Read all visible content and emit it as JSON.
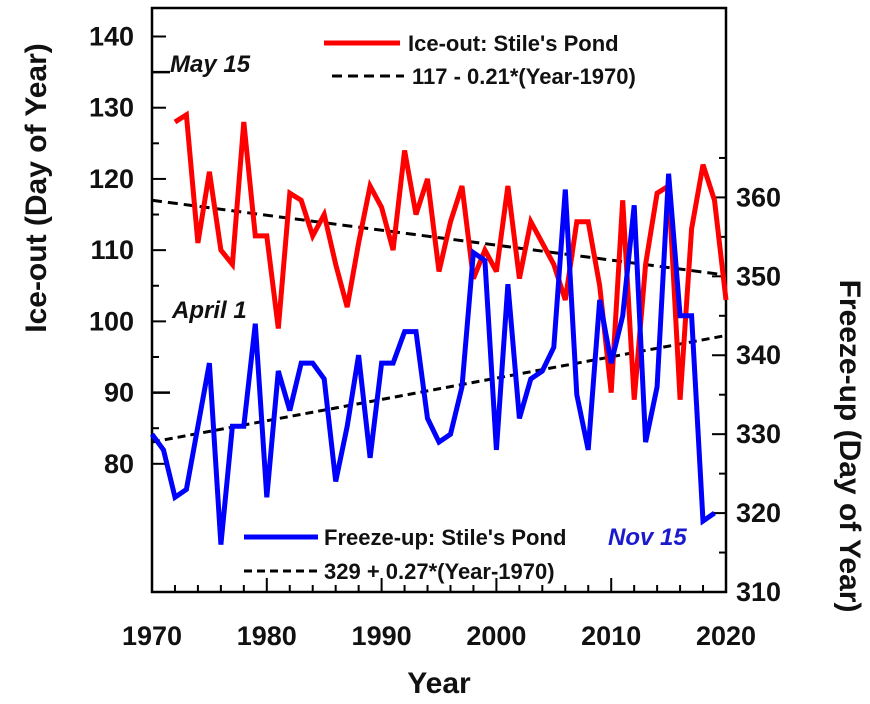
{
  "chart_data": {
    "type": "line",
    "xlabel": "Year",
    "ylabel_left": "Ice-out (Day of Year)",
    "ylabel_right": "Freeze-up (Day of Year)",
    "xlim": [
      1970,
      2020
    ],
    "ylim_left": [
      62,
      144
    ],
    "ylim_right": [
      310,
      384
    ],
    "x_ticks": [
      1970,
      1980,
      1990,
      2000,
      2010,
      2020
    ],
    "y_ticks_left": [
      80,
      90,
      100,
      110,
      120,
      130,
      140
    ],
    "y_ticks_right": [
      310,
      320,
      330,
      340,
      350,
      360
    ],
    "colors": {
      "ice_out": "#ff0000",
      "freeze_up": "#0000ff",
      "trend": "#000000",
      "nov15": "#1a1acc"
    },
    "series": [
      {
        "name": "Ice-out: Stile's Pond",
        "axis": "left",
        "x": [
          1972,
          1973,
          1974,
          1975,
          1976,
          1977,
          1978,
          1979,
          1980,
          1981,
          1982,
          1983,
          1984,
          1985,
          1986,
          1987,
          1988,
          1989,
          1990,
          1991,
          1992,
          1993,
          1994,
          1995,
          1996,
          1997,
          1998,
          1999,
          2000,
          2001,
          2002,
          2003,
          2004,
          2005,
          2006,
          2007,
          2008,
          2009,
          2010,
          2011,
          2012,
          2013,
          2014,
          2015,
          2016,
          2017,
          2018,
          2019,
          2020
        ],
        "values": [
          128,
          129,
          111,
          121,
          110,
          108,
          128,
          112,
          112,
          99,
          118,
          117,
          112,
          115,
          108,
          102,
          111,
          119,
          116,
          110,
          124,
          115,
          120,
          107,
          114,
          119,
          106,
          110,
          107,
          119,
          106,
          114,
          111,
          108,
          103,
          114,
          114,
          105,
          90,
          117,
          89,
          108,
          118,
          119,
          89,
          113,
          122,
          117,
          103
        ]
      },
      {
        "name": "Freeze-up: Stile's Pond",
        "axis": "right",
        "x": [
          1970,
          1971,
          1972,
          1973,
          1974,
          1975,
          1976,
          1977,
          1978,
          1979,
          1980,
          1981,
          1982,
          1983,
          1984,
          1985,
          1986,
          1987,
          1988,
          1989,
          1990,
          1991,
          1992,
          1993,
          1994,
          1995,
          1996,
          1997,
          1998,
          1999,
          2000,
          2001,
          2002,
          2003,
          2004,
          2005,
          2006,
          2007,
          2008,
          2009,
          2010,
          2011,
          2012,
          2013,
          2014,
          2015,
          2016,
          2017,
          2018,
          2019
        ],
        "values": [
          330,
          328,
          322,
          323,
          331,
          339,
          316,
          331,
          331,
          344,
          322,
          338,
          333,
          339,
          339,
          337,
          324,
          331,
          340,
          327,
          339,
          339,
          343,
          343,
          332,
          329,
          330,
          336,
          353,
          352,
          328,
          349,
          332,
          337,
          338,
          341,
          361,
          335,
          328,
          347,
          339,
          345,
          359,
          329,
          336,
          363,
          345,
          345,
          319,
          320
        ]
      }
    ],
    "trend_lines": [
      {
        "name": "117 - 0.21*(Year-1970)",
        "axis": "left",
        "intercept": 117,
        "slope": -0.21,
        "x_range": [
          1970,
          2020
        ]
      },
      {
        "name": "329 + 0.27*(Year-1970)",
        "axis": "right",
        "intercept": 329,
        "slope": 0.27,
        "x_range": [
          1970,
          2020
        ]
      }
    ],
    "annotations": [
      {
        "text": "May 15",
        "axis": "left",
        "value": 135
      },
      {
        "text": "April 1",
        "axis": "left",
        "value": 90
      },
      {
        "text": "Nov 15",
        "axis": "right",
        "value": 319
      }
    ],
    "legend_top": {
      "placement": "top-right",
      "entries": [
        "Ice-out: Stile's Pond",
        "117 - 0.21*(Year-1970)"
      ]
    },
    "legend_bottom": {
      "placement": "bottom-center",
      "entries": [
        "Freeze-up: Stile's Pond",
        "329 + 0.27*(Year-1970)"
      ]
    },
    "grid": false
  }
}
